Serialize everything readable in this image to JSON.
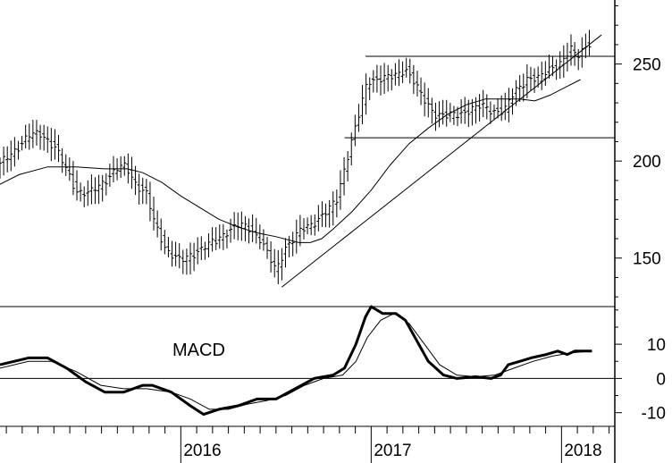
{
  "chart_data": [
    {
      "type": "line",
      "subtype": "ohlc-weekly-bars",
      "title": "",
      "y_axis_side": "right",
      "ylim": [
        125,
        283
      ],
      "xlim": [
        2015.05,
        2018.28
      ],
      "yticks": [
        150,
        200,
        250
      ],
      "xticks": [
        2016,
        2017,
        2018
      ],
      "xtick_labels": [
        "2016",
        "2017",
        "2018"
      ],
      "grid": false,
      "legend": "none",
      "price_anchors": [
        [
          2015.05,
          198
        ],
        [
          2015.12,
          205
        ],
        [
          2015.2,
          213
        ],
        [
          2015.27,
          214
        ],
        [
          2015.34,
          207
        ],
        [
          2015.4,
          195
        ],
        [
          2015.45,
          185
        ],
        [
          2015.52,
          183
        ],
        [
          2015.58,
          188
        ],
        [
          2015.66,
          196
        ],
        [
          2015.71,
          197
        ],
        [
          2015.76,
          189
        ],
        [
          2015.82,
          183
        ],
        [
          2015.86,
          168
        ],
        [
          2015.92,
          155
        ],
        [
          2016.0,
          148
        ],
        [
          2016.06,
          152
        ],
        [
          2016.12,
          156
        ],
        [
          2016.18,
          158
        ],
        [
          2016.24,
          164
        ],
        [
          2016.3,
          167
        ],
        [
          2016.36,
          165
        ],
        [
          2016.42,
          160
        ],
        [
          2016.46,
          151
        ],
        [
          2016.5,
          143
        ],
        [
          2016.55,
          156
        ],
        [
          2016.62,
          163
        ],
        [
          2016.68,
          167
        ],
        [
          2016.74,
          172
        ],
        [
          2016.78,
          175
        ],
        [
          2016.82,
          180
        ],
        [
          2016.86,
          197
        ],
        [
          2016.9,
          212
        ],
        [
          2016.94,
          225
        ],
        [
          2016.98,
          241
        ],
        [
          2017.05,
          243
        ],
        [
          2017.12,
          243
        ],
        [
          2017.18,
          248
        ],
        [
          2017.22,
          242
        ],
        [
          2017.27,
          232
        ],
        [
          2017.33,
          225
        ],
        [
          2017.4,
          223
        ],
        [
          2017.46,
          224
        ],
        [
          2017.52,
          227
        ],
        [
          2017.58,
          228
        ],
        [
          2017.64,
          226
        ],
        [
          2017.7,
          226
        ],
        [
          2017.75,
          235
        ],
        [
          2017.82,
          243
        ],
        [
          2017.88,
          242
        ],
        [
          2017.94,
          248
        ],
        [
          2018.0,
          251
        ],
        [
          2018.05,
          257
        ],
        [
          2018.08,
          254
        ],
        [
          2018.12,
          259
        ],
        [
          2018.16,
          262
        ]
      ],
      "moving_average": [
        [
          2015.05,
          188
        ],
        [
          2015.15,
          193
        ],
        [
          2015.3,
          197
        ],
        [
          2015.45,
          197
        ],
        [
          2015.6,
          196
        ],
        [
          2015.72,
          196
        ],
        [
          2015.8,
          194
        ],
        [
          2015.9,
          189
        ],
        [
          2016.0,
          182
        ],
        [
          2016.1,
          176
        ],
        [
          2016.2,
          170
        ],
        [
          2016.3,
          166
        ],
        [
          2016.4,
          163
        ],
        [
          2016.5,
          161
        ],
        [
          2016.62,
          158
        ],
        [
          2016.68,
          158
        ],
        [
          2016.74,
          160
        ],
        [
          2016.8,
          165
        ],
        [
          2016.9,
          174
        ],
        [
          2017.0,
          185
        ],
        [
          2017.1,
          198
        ],
        [
          2017.2,
          209
        ],
        [
          2017.3,
          217
        ],
        [
          2017.4,
          224
        ],
        [
          2017.5,
          229
        ],
        [
          2017.6,
          232
        ],
        [
          2017.7,
          232
        ],
        [
          2017.78,
          232
        ],
        [
          2017.86,
          231
        ],
        [
          2017.94,
          234
        ],
        [
          2018.02,
          238
        ],
        [
          2018.1,
          242
        ]
      ],
      "horizontal_lines": [
        {
          "y": 254,
          "x_start": 2016.97,
          "x_end": 2018.28
        },
        {
          "y": 212,
          "x_start": 2016.86,
          "x_end": 2018.28
        }
      ],
      "trendline": {
        "x1": 2016.53,
        "y1": 135,
        "x2": 2018.21,
        "y2": 265
      }
    },
    {
      "type": "line",
      "title": "MACD",
      "y_axis_side": "right",
      "ylim": [
        -14,
        21
      ],
      "yticks": [
        -10,
        0,
        10
      ],
      "ytick_labels": [
        "-10",
        "0",
        "10"
      ],
      "zero_line": true,
      "grid": false,
      "legend": "none",
      "series": [
        {
          "line_style": "thick",
          "color": "#000000",
          "points": [
            [
              2015.05,
              4
            ],
            [
              2015.2,
              6
            ],
            [
              2015.3,
              6
            ],
            [
              2015.4,
              3
            ],
            [
              2015.5,
              -1
            ],
            [
              2015.6,
              -4
            ],
            [
              2015.7,
              -4
            ],
            [
              2015.8,
              -2
            ],
            [
              2015.85,
              -2
            ],
            [
              2015.95,
              -4
            ],
            [
              2016.05,
              -8
            ],
            [
              2016.12,
              -10.5
            ],
            [
              2016.2,
              -9
            ],
            [
              2016.3,
              -8
            ],
            [
              2016.4,
              -6
            ],
            [
              2016.5,
              -6
            ],
            [
              2016.6,
              -3
            ],
            [
              2016.7,
              0
            ],
            [
              2016.8,
              1
            ],
            [
              2016.86,
              3
            ],
            [
              2016.92,
              10
            ],
            [
              2016.97,
              18
            ],
            [
              2017.0,
              21
            ],
            [
              2017.06,
              19
            ],
            [
              2017.13,
              19
            ],
            [
              2017.18,
              17
            ],
            [
              2017.25,
              10
            ],
            [
              2017.3,
              5
            ],
            [
              2017.38,
              1
            ],
            [
              2017.45,
              0
            ],
            [
              2017.55,
              0.5
            ],
            [
              2017.63,
              0
            ],
            [
              2017.68,
              1
            ],
            [
              2017.72,
              4
            ],
            [
              2017.78,
              5
            ],
            [
              2017.84,
              6
            ],
            [
              2017.92,
              7
            ],
            [
              2017.98,
              8
            ],
            [
              2018.03,
              7
            ],
            [
              2018.07,
              8
            ],
            [
              2018.12,
              8
            ],
            [
              2018.16,
              8
            ]
          ]
        },
        {
          "line_style": "thin",
          "color": "#000000",
          "points": [
            [
              2015.05,
              3
            ],
            [
              2015.2,
              5
            ],
            [
              2015.32,
              5
            ],
            [
              2015.45,
              2
            ],
            [
              2015.58,
              -2
            ],
            [
              2015.7,
              -3
            ],
            [
              2015.82,
              -3
            ],
            [
              2015.95,
              -4
            ],
            [
              2016.05,
              -6
            ],
            [
              2016.15,
              -9
            ],
            [
              2016.25,
              -9
            ],
            [
              2016.35,
              -7.5
            ],
            [
              2016.45,
              -6.5
            ],
            [
              2016.55,
              -5
            ],
            [
              2016.65,
              -2
            ],
            [
              2016.75,
              0
            ],
            [
              2016.85,
              1
            ],
            [
              2016.92,
              5
            ],
            [
              2016.98,
              12
            ],
            [
              2017.05,
              17
            ],
            [
              2017.12,
              19
            ],
            [
              2017.2,
              16
            ],
            [
              2017.28,
              10
            ],
            [
              2017.36,
              4
            ],
            [
              2017.45,
              1
            ],
            [
              2017.55,
              0.5
            ],
            [
              2017.65,
              1
            ],
            [
              2017.75,
              3
            ],
            [
              2017.85,
              5
            ],
            [
              2017.95,
              6.5
            ],
            [
              2018.05,
              7.5
            ],
            [
              2018.16,
              8
            ]
          ]
        }
      ]
    }
  ]
}
